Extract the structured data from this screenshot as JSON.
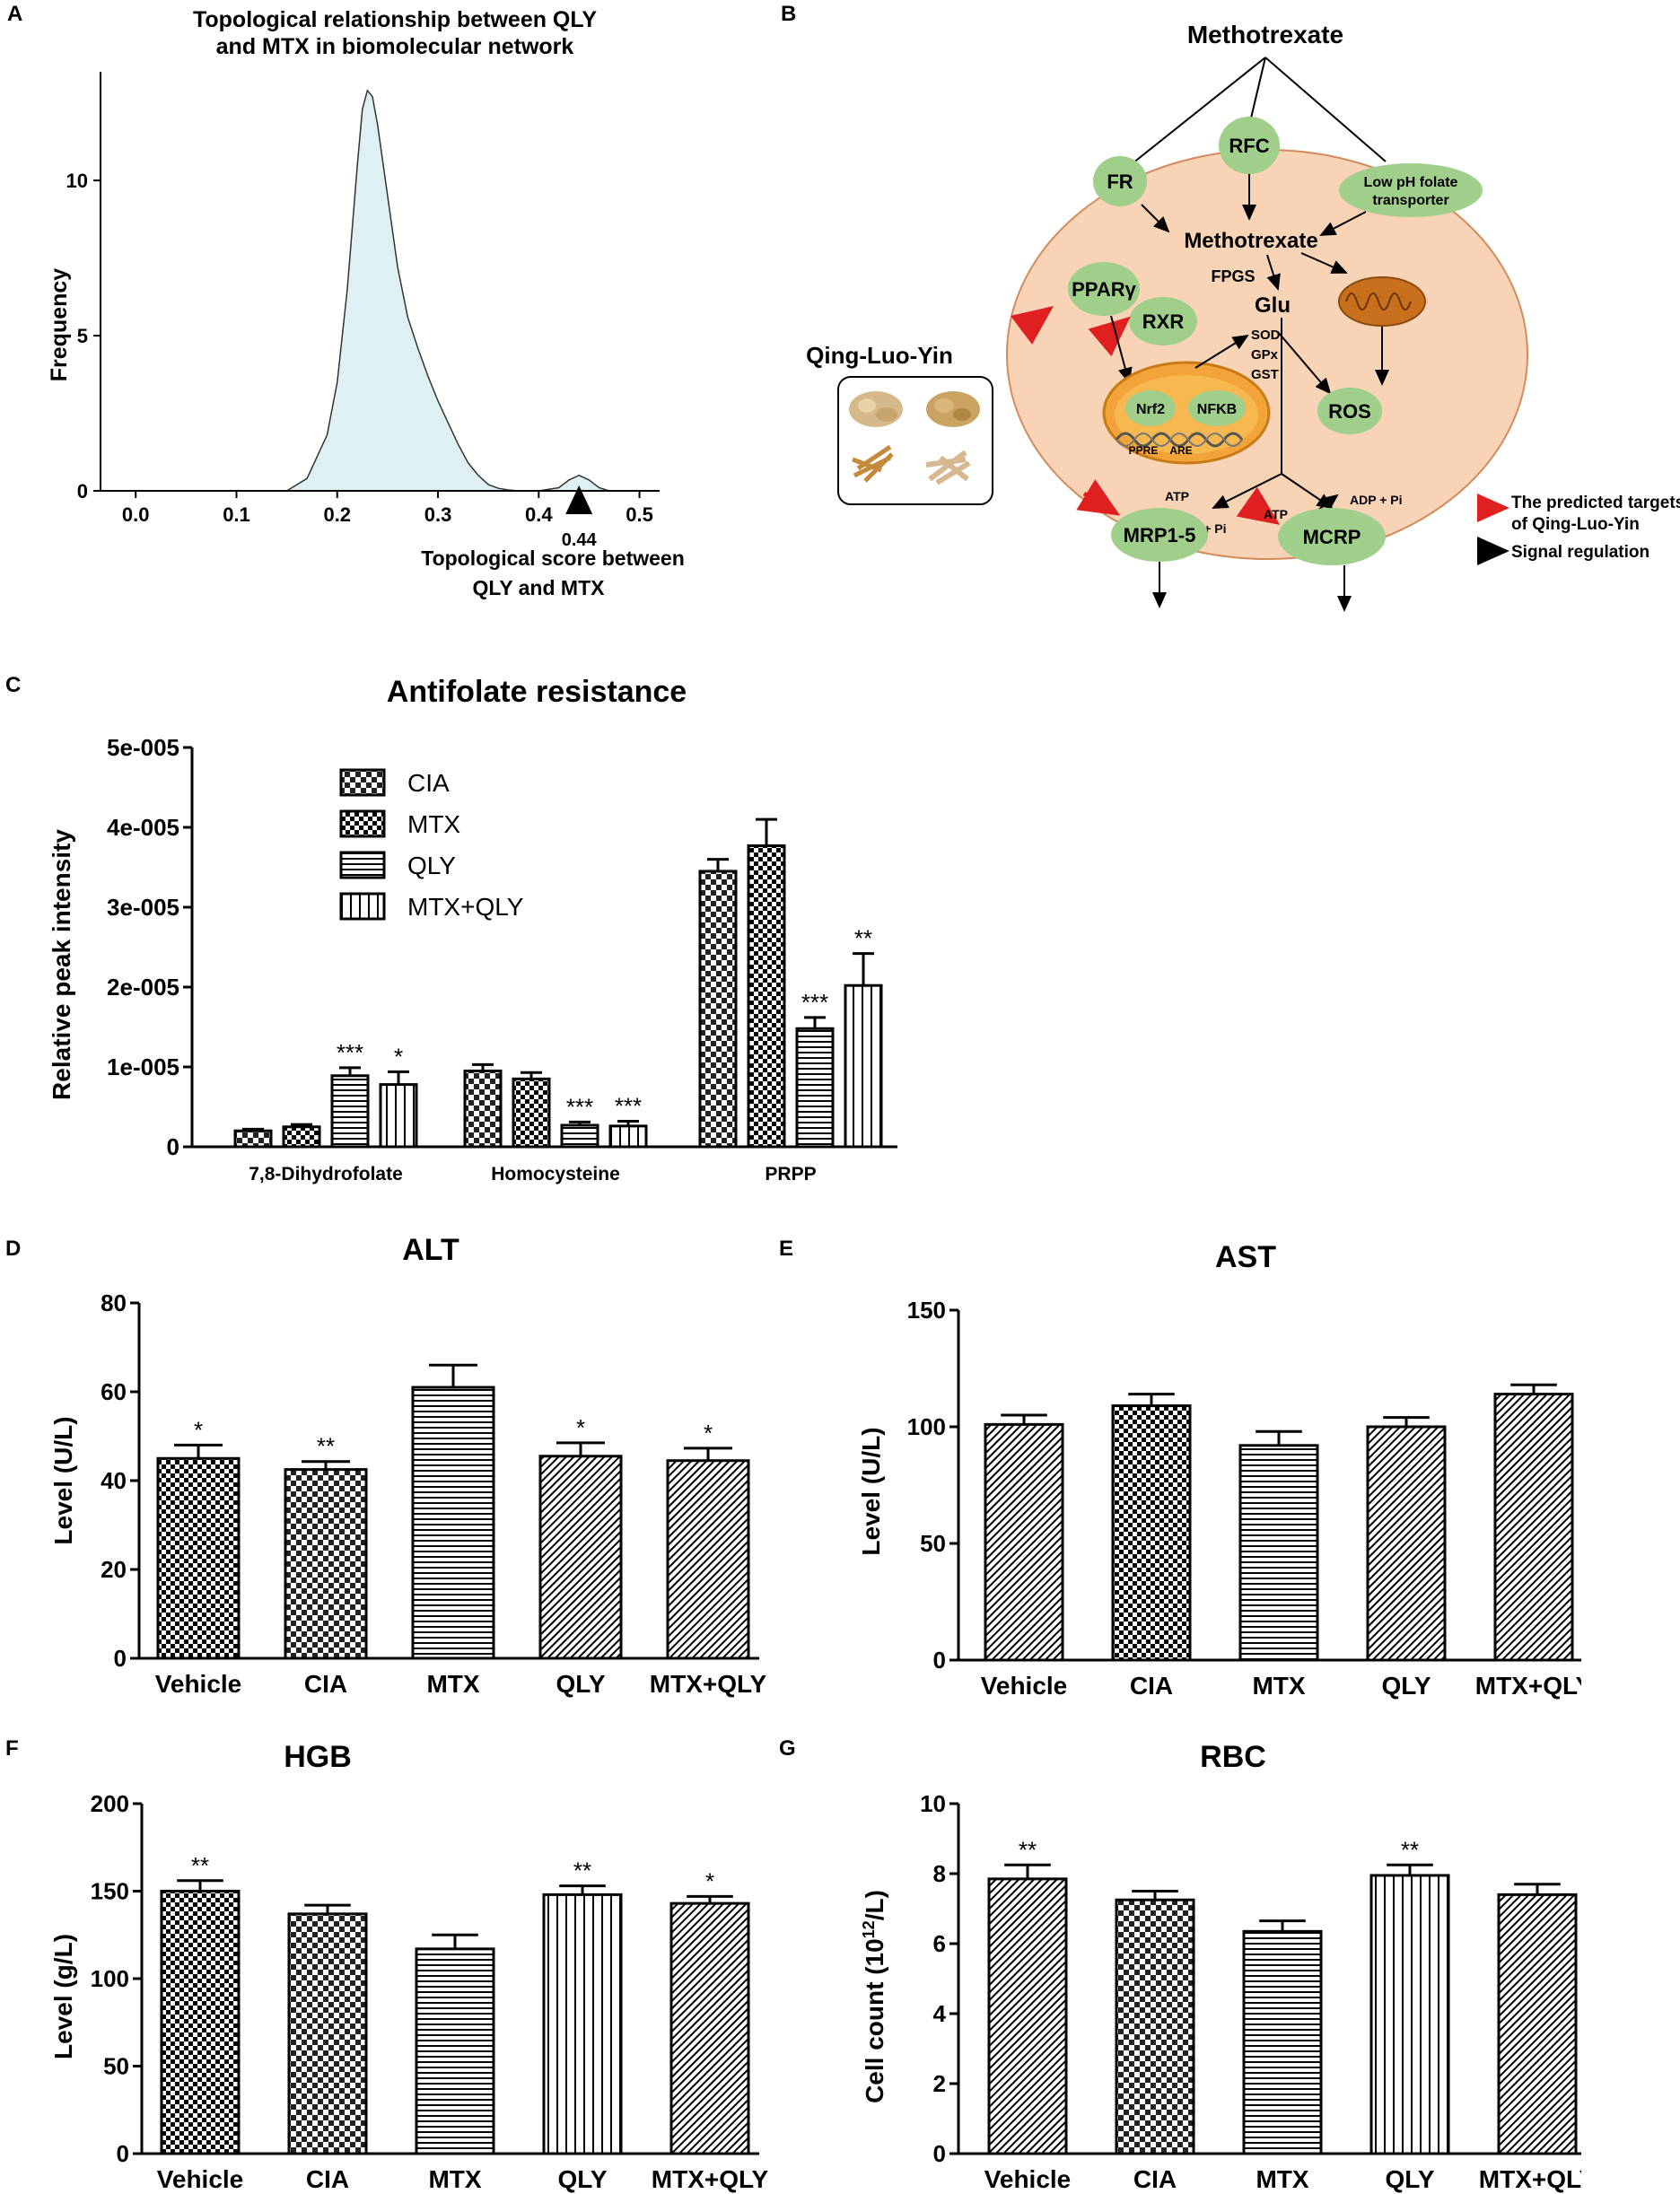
{
  "panel_letters": {
    "a": "A",
    "b": "B",
    "c": "C",
    "d": "D",
    "e": "E",
    "f": "F",
    "g": "G"
  },
  "colors": {
    "density_fill": "#dff0f2",
    "cell_fill": "#f8d3b5",
    "cell_stroke": "#d38c5d",
    "node_fill": "#9fcf8a",
    "nucleus_fill": "#f2a33a",
    "mito_fill": "#c8701e",
    "red_arrow": "#e02020",
    "herb_box": "#ffffff"
  },
  "chart_data": [
    {
      "id": "A",
      "type": "area",
      "title_lines": [
        "Topological relationship between QLY",
        "and MTX in biomolecular network"
      ],
      "xlabel_lines": [
        "Topological  score  between",
        "QLY and MTX"
      ],
      "ylabel": "Frequency",
      "xlim": [
        -0.01,
        0.52
      ],
      "ylim": [
        0,
        13.5
      ],
      "x_ticks": [
        0.0,
        0.1,
        0.2,
        0.3,
        0.4,
        0.5
      ],
      "x_tick_labels": [
        "0.0",
        "0.1",
        "0.2",
        "0.3",
        "0.4",
        "0.5"
      ],
      "y_ticks": [
        0,
        5,
        10
      ],
      "y_tick_labels": [
        "0",
        "5",
        "10"
      ],
      "x": [
        0.15,
        0.17,
        0.19,
        0.2,
        0.21,
        0.22,
        0.225,
        0.23,
        0.235,
        0.24,
        0.25,
        0.26,
        0.27,
        0.28,
        0.29,
        0.3,
        0.31,
        0.32,
        0.33,
        0.34,
        0.35,
        0.36,
        0.37,
        0.38,
        0.4,
        0.42,
        0.43,
        0.44,
        0.45,
        0.46,
        0.47
      ],
      "y": [
        0,
        0.4,
        1.8,
        3.5,
        6.5,
        10.5,
        12.3,
        12.9,
        12.7,
        11.8,
        9.5,
        7.2,
        5.6,
        4.6,
        3.7,
        2.9,
        2.2,
        1.5,
        0.9,
        0.5,
        0.2,
        0.08,
        0.03,
        0,
        0,
        0.1,
        0.35,
        0.5,
        0.35,
        0.1,
        0
      ],
      "marker_value": 0.44,
      "marker_label": "0.44"
    },
    {
      "id": "C",
      "type": "bar",
      "title": "Antifolate resistance",
      "ylabel": "Relative peak intensity",
      "ylim": [
        0,
        5e-05
      ],
      "y_ticks": [
        0,
        1e-05,
        2e-05,
        3e-05,
        4e-05,
        5e-05
      ],
      "y_tick_labels": [
        "0",
        "1e-005",
        "2e-005",
        "3e-005",
        "4e-005",
        "5e-005"
      ],
      "categories": [
        "7,8-Dihydrofolate",
        "Homocysteine",
        "PRPP"
      ],
      "legend_position": "top-left",
      "series": [
        {
          "name": "CIA",
          "pattern": "check",
          "values": [
            2e-06,
            9.5e-06,
            3.45e-05
          ],
          "errors": [
            2e-07,
            8e-07,
            1.5e-06
          ],
          "labels": [
            "",
            "",
            ""
          ]
        },
        {
          "name": "MTX",
          "pattern": "check2",
          "values": [
            2.5e-06,
            8.5e-06,
            3.77e-05
          ],
          "errors": [
            3e-07,
            8e-07,
            3.3e-06
          ],
          "labels": [
            "",
            "",
            ""
          ]
        },
        {
          "name": "QLY",
          "pattern": "hlines",
          "values": [
            8.9e-06,
            2.7e-06,
            1.48e-05
          ],
          "errors": [
            1e-06,
            4e-07,
            1.4e-06
          ],
          "labels": [
            "***",
            "***",
            "***"
          ]
        },
        {
          "name": "MTX+QLY",
          "pattern": "vlines",
          "values": [
            7.8e-06,
            2.6e-06,
            2.02e-05
          ],
          "errors": [
            1.6e-06,
            6e-07,
            4e-06
          ],
          "labels": [
            "*",
            "***",
            "**"
          ]
        }
      ]
    },
    {
      "id": "D",
      "type": "bar",
      "title": "ALT",
      "ylabel": "Level (U/L)",
      "ylim": [
        0,
        80
      ],
      "y_ticks": [
        0,
        20,
        40,
        60,
        80
      ],
      "y_tick_labels": [
        "0",
        "20",
        "40",
        "60",
        "80"
      ],
      "categories": [
        "Vehicle",
        "CIA",
        "MTX",
        "QLY",
        "MTX+QLY"
      ],
      "patterns": [
        "check2",
        "check",
        "hlines",
        "diag",
        "diag"
      ],
      "values": [
        45,
        42.5,
        61,
        45.5,
        44.5
      ],
      "errors": [
        3,
        1.8,
        5,
        3,
        2.8
      ],
      "labels": [
        "*",
        "**",
        "",
        "*",
        "*"
      ]
    },
    {
      "id": "E",
      "type": "bar",
      "title": "AST",
      "ylabel": "Level (U/L)",
      "ylim": [
        0,
        150
      ],
      "y_ticks": [
        0,
        50,
        100,
        150
      ],
      "y_tick_labels": [
        "0",
        "50",
        "100",
        "150"
      ],
      "categories": [
        "Vehicle",
        "CIA",
        "MTX",
        "QLY",
        "MTX+QLY"
      ],
      "patterns": [
        "diag",
        "check2",
        "hlines",
        "diag",
        "diag"
      ],
      "values": [
        101,
        109,
        92,
        100,
        114
      ],
      "errors": [
        4,
        5,
        6,
        4,
        4
      ],
      "labels": [
        "",
        "",
        "",
        "",
        ""
      ]
    },
    {
      "id": "F",
      "type": "bar",
      "title": "HGB",
      "ylabel": "Level (g/L)",
      "ylim": [
        0,
        200
      ],
      "y_ticks": [
        0,
        50,
        100,
        150,
        200
      ],
      "y_tick_labels": [
        "0",
        "50",
        "100",
        "150",
        "200"
      ],
      "categories": [
        "Vehicle",
        "CIA",
        "MTX",
        "QLY",
        "MTX+QLY"
      ],
      "patterns": [
        "check2",
        "check",
        "hlines",
        "vlines",
        "diag"
      ],
      "values": [
        150,
        137,
        117,
        148,
        143
      ],
      "errors": [
        6,
        5,
        8,
        5,
        4
      ],
      "labels": [
        "**",
        "",
        "",
        "**",
        "*"
      ]
    },
    {
      "id": "G",
      "type": "bar",
      "title": "RBC",
      "ylabel": "Cell count (10",
      "ylabel_sup": "12",
      "ylabel_tail": "/L)",
      "ylim": [
        0,
        10
      ],
      "y_ticks": [
        0,
        2,
        4,
        6,
        8,
        10
      ],
      "y_tick_labels": [
        "0",
        "2",
        "4",
        "6",
        "8",
        "10"
      ],
      "categories": [
        "Vehicle",
        "CIA",
        "MTX",
        "QLY",
        "MTX+QLY"
      ],
      "patterns": [
        "diag",
        "check",
        "hlines",
        "vlines",
        "diag"
      ],
      "values": [
        7.85,
        7.25,
        6.35,
        7.95,
        7.4
      ],
      "errors": [
        0.4,
        0.25,
        0.3,
        0.3,
        0.3
      ],
      "labels": [
        "**",
        "",
        "",
        "**",
        ""
      ]
    }
  ],
  "diagram_b": {
    "drug_top": "Methotrexate",
    "transporters": {
      "fr": "FR",
      "rfc": "RFC",
      "low_ph_1": "Low pH folate",
      "low_ph_2": "transporter"
    },
    "inner_mtx": "Methotrexate",
    "fpgs": "FPGS",
    "glu": "Glu",
    "ppar": "PPARγ",
    "rxr": "RXR",
    "sod": "SOD",
    "gpx": "GPx",
    "gst": "GST",
    "ros": "ROS",
    "nrf2": "Nrf2",
    "nfkb": "NFKB",
    "ppre": "PPRE",
    "are": "ARE",
    "herb_title": "Qing-Luo-Yin",
    "atp_left": "ATP",
    "atp_right": "ATP",
    "adp_left": "ADP + Pi",
    "adp_right": "ADP + Pi",
    "mrp": "MRP1-5",
    "mcrp": "MCRP",
    "legend_red_1": "The predicted targets",
    "legend_red_2": "of Qing-Luo-Yin",
    "legend_black": "Signal regulation"
  }
}
